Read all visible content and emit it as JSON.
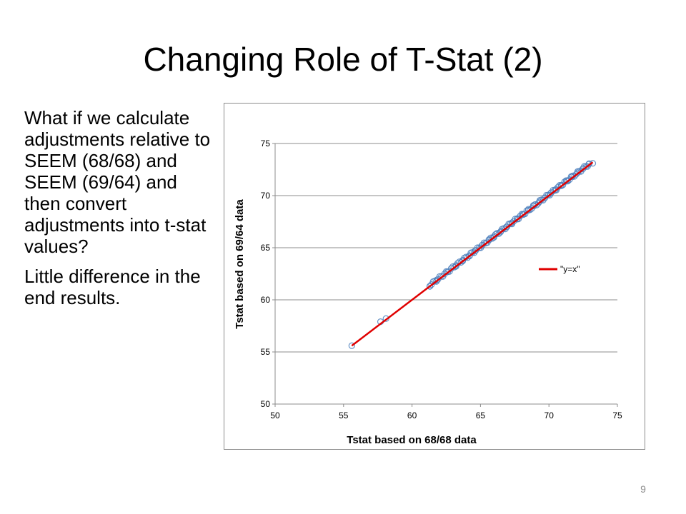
{
  "slide": {
    "title": "Changing Role of T-Stat (2)",
    "paragraphs": [
      "What if we calculate adjustments relative to SEEM (68/68) and SEEM (69/64) and then convert adjustments into t-stat values?",
      "Little difference in the end results."
    ],
    "page_number": "9"
  },
  "chart_data": {
    "type": "scatter",
    "xlabel": "Tstat based on 68/68 data",
    "ylabel": "Tstat based on 69/64 data",
    "xlim": [
      50,
      75
    ],
    "ylim": [
      50,
      75
    ],
    "xticks": [
      "50",
      "55",
      "60",
      "65",
      "70",
      "75"
    ],
    "yticks": [
      "50",
      "55",
      "60",
      "65",
      "70",
      "75"
    ],
    "grid": "horizontal",
    "legend_position": "right",
    "series": [
      {
        "kind": "scatter",
        "color": "#4f81bd",
        "points": [
          [
            55.6,
            55.6
          ],
          [
            57.7,
            57.9
          ],
          [
            58.1,
            58.2
          ],
          [
            61.3,
            61.3
          ],
          [
            61.8,
            61.9
          ],
          [
            62.6,
            62.7
          ],
          [
            63.2,
            63.3
          ],
          [
            63.7,
            63.8
          ],
          [
            64.2,
            64.2
          ],
          [
            64.6,
            64.7
          ],
          [
            65.1,
            65.2
          ],
          [
            65.6,
            65.7
          ],
          [
            66.0,
            66.1
          ],
          [
            66.5,
            66.6
          ],
          [
            66.9,
            67.0
          ],
          [
            67.3,
            67.4
          ],
          [
            67.7,
            67.8
          ],
          [
            68.1,
            68.2
          ],
          [
            68.5,
            68.6
          ],
          [
            68.9,
            69.0
          ],
          [
            69.3,
            69.4
          ],
          [
            69.7,
            69.8
          ],
          [
            70.1,
            70.2
          ],
          [
            70.5,
            70.6
          ],
          [
            70.9,
            71.0
          ],
          [
            71.3,
            71.4
          ],
          [
            71.7,
            71.8
          ],
          [
            72.1,
            72.2
          ],
          [
            72.5,
            72.6
          ],
          [
            72.9,
            73.0
          ],
          [
            73.2,
            73.1
          ]
        ]
      },
      {
        "name": "\"y=x\"",
        "kind": "line",
        "color": "#e00000",
        "x": [
          55.6,
          73.2
        ],
        "y": [
          55.6,
          73.2
        ]
      }
    ]
  }
}
